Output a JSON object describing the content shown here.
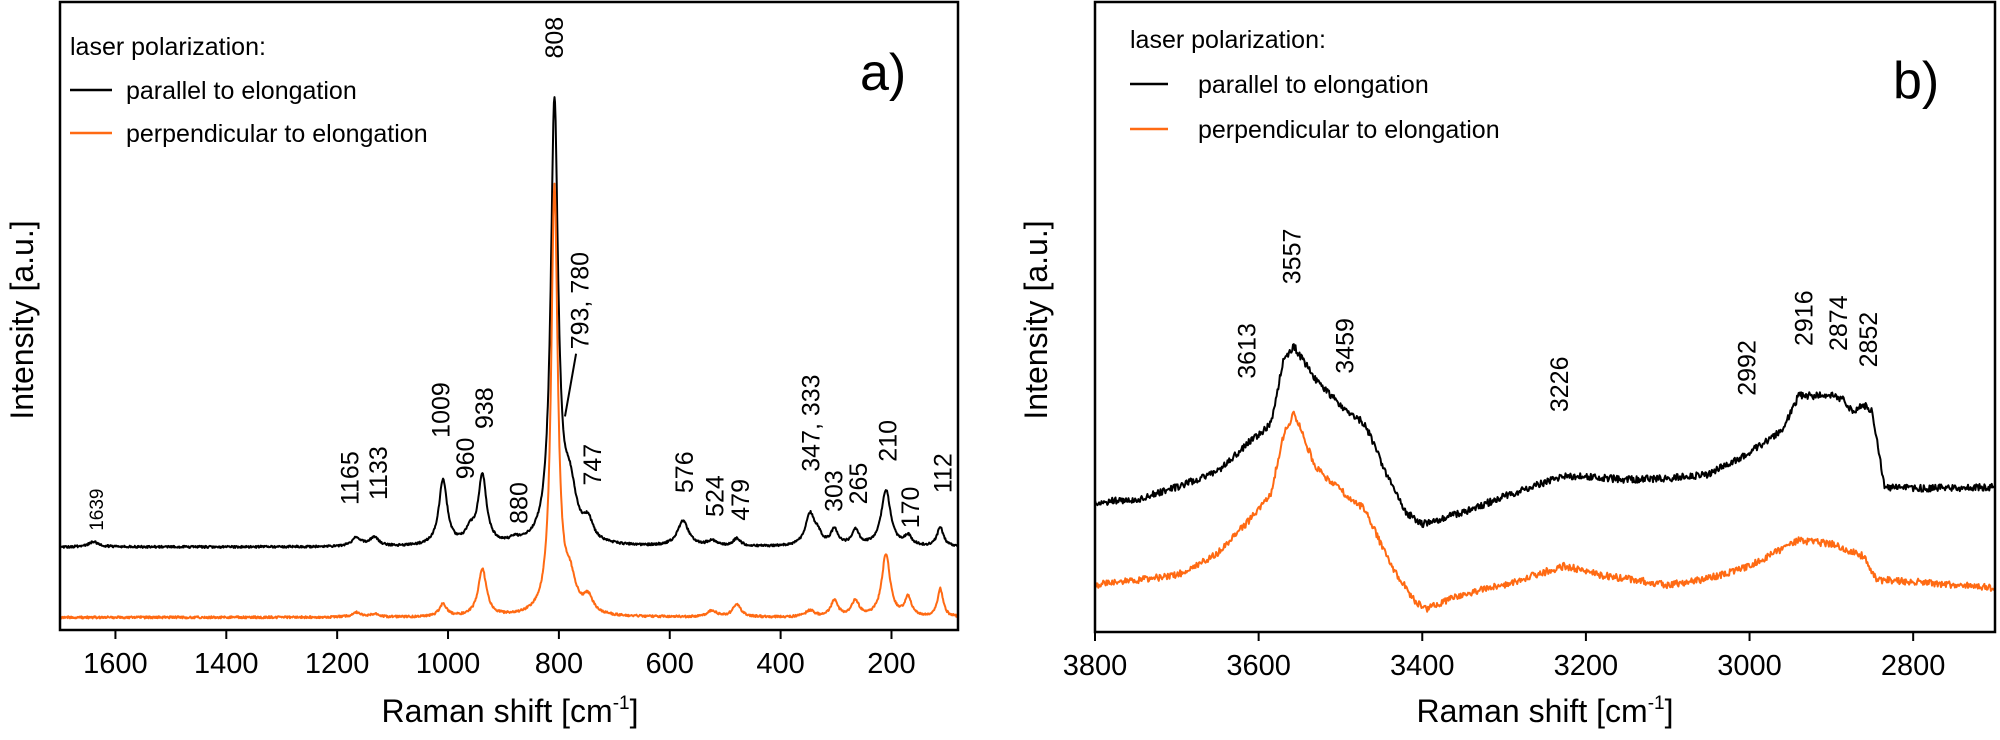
{
  "chart_data": [
    {
      "type": "line",
      "panel_label": "a)",
      "xlabel": "Raman shift [cm",
      "xlabel_sup": "-1",
      "xlabel_end": "]",
      "ylabel": "Intensity [a.u.]",
      "xlim": [
        1700,
        80
      ],
      "ylim": [
        0,
        100
      ],
      "x_ticks": [
        1600,
        1400,
        1200,
        1000,
        800,
        600,
        400,
        200
      ],
      "y_ticks": [],
      "grid": false,
      "legend": {
        "title": "laser polarization:",
        "placement": "top-left",
        "entries": [
          "parallel to elongation",
          "perpendicular to elongation"
        ]
      },
      "series": [
        {
          "name": "parallel to elongation",
          "color": "#000000",
          "baseline": 13.2,
          "peaks": [
            {
              "x": 1639,
              "h": 0.8,
              "w": 12
            },
            {
              "x": 1165,
              "h": 1.4,
              "w": 10
            },
            {
              "x": 1133,
              "h": 1.4,
              "w": 10
            },
            {
              "x": 1009,
              "h": 10.5,
              "w": 9
            },
            {
              "x": 960,
              "h": 2,
              "w": 10
            },
            {
              "x": 938,
              "h": 11,
              "w": 9
            },
            {
              "x": 880,
              "h": 0.6,
              "w": 10
            },
            {
              "x": 808,
              "h": 70,
              "w": 8
            },
            {
              "x": 780,
              "h": 8,
              "w": 14
            },
            {
              "x": 747,
              "h": 3,
              "w": 10
            },
            {
              "x": 576,
              "h": 4,
              "w": 12
            },
            {
              "x": 524,
              "h": 0.8,
              "w": 10
            },
            {
              "x": 479,
              "h": 1.2,
              "w": 8
            },
            {
              "x": 347,
              "h": 5,
              "w": 10
            },
            {
              "x": 333,
              "h": 1.5,
              "w": 8
            },
            {
              "x": 303,
              "h": 2.5,
              "w": 8
            },
            {
              "x": 265,
              "h": 2.5,
              "w": 8
            },
            {
              "x": 210,
              "h": 9,
              "w": 10
            },
            {
              "x": 170,
              "h": 1.5,
              "w": 8
            },
            {
              "x": 112,
              "h": 3,
              "w": 7
            }
          ]
        },
        {
          "name": "perpendicular to elongation",
          "color": "#ff6a13",
          "baseline": 2,
          "peaks": [
            {
              "x": 1165,
              "h": 0.7,
              "w": 10
            },
            {
              "x": 1133,
              "h": 0.5,
              "w": 10
            },
            {
              "x": 1009,
              "h": 2,
              "w": 8
            },
            {
              "x": 938,
              "h": 7.5,
              "w": 9
            },
            {
              "x": 808,
              "h": 68,
              "w": 7
            },
            {
              "x": 780,
              "h": 5,
              "w": 13
            },
            {
              "x": 747,
              "h": 2.5,
              "w": 10
            },
            {
              "x": 524,
              "h": 1,
              "w": 10
            },
            {
              "x": 479,
              "h": 2,
              "w": 9
            },
            {
              "x": 347,
              "h": 1,
              "w": 10
            },
            {
              "x": 303,
              "h": 2.5,
              "w": 8
            },
            {
              "x": 265,
              "h": 2.5,
              "w": 8
            },
            {
              "x": 210,
              "h": 10,
              "w": 9
            },
            {
              "x": 170,
              "h": 3,
              "w": 7
            },
            {
              "x": 112,
              "h": 4.5,
              "w": 6
            }
          ]
        }
      ],
      "annotations": [
        {
          "text": "1639",
          "x": 1639,
          "y": 15.8,
          "small": true
        },
        {
          "text": "1165",
          "x": 1178,
          "y": 19.9
        },
        {
          "text": "1133",
          "x": 1126,
          "y": 20.7
        },
        {
          "text": "1009",
          "x": 1014,
          "y": 30.6
        },
        {
          "text": "960",
          "x": 969,
          "y": 24
        },
        {
          "text": "938",
          "x": 935,
          "y": 32
        },
        {
          "text": "880",
          "x": 873,
          "y": 16.9
        },
        {
          "text": "808",
          "x": 809,
          "y": 91
        },
        {
          "text": "793, 780",
          "x": 763,
          "y": 44.7,
          "leader": [
            [
              769,
              44
            ],
            [
              789,
              34
            ]
          ]
        },
        {
          "text": "747",
          "x": 740,
          "y": 23
        },
        {
          "text": "576",
          "x": 574,
          "y": 21.8
        },
        {
          "text": "524",
          "x": 519,
          "y": 18
        },
        {
          "text": "479",
          "x": 473,
          "y": 17.4
        },
        {
          "text": "347, 333",
          "x": 346,
          "y": 25.2
        },
        {
          "text": "303",
          "x": 305,
          "y": 18.8
        },
        {
          "text": "265",
          "x": 260,
          "y": 20
        },
        {
          "text": "210",
          "x": 207,
          "y": 26.8
        },
        {
          "text": "170",
          "x": 167,
          "y": 16.2
        },
        {
          "text": "112",
          "x": 108,
          "y": 21.8
        }
      ]
    },
    {
      "type": "line",
      "panel_label": "b)",
      "xlabel": "Raman shift [cm",
      "xlabel_sup": "-1",
      "xlabel_end": "]",
      "ylabel": "Intensity [a.u.]",
      "xlim": [
        3800,
        2700
      ],
      "ylim": [
        0,
        100
      ],
      "x_ticks": [
        3800,
        3600,
        3400,
        3200,
        3000,
        2800
      ],
      "y_ticks": [],
      "grid": false,
      "legend": {
        "title": "laser polarization:",
        "placement": "top-left",
        "entries": [
          "parallel to elongation",
          "perpendicular to elongation"
        ]
      },
      "series": [
        {
          "name": "parallel to elongation",
          "color": "#000000",
          "points": [
            [
              3800,
              20.6
            ],
            [
              3750,
              21
            ],
            [
              3700,
              23
            ],
            [
              3650,
              25.5
            ],
            [
              3613,
              30
            ],
            [
              3585,
              33
            ],
            [
              3570,
              43
            ],
            [
              3557,
              45.4
            ],
            [
              3530,
              40
            ],
            [
              3500,
              36
            ],
            [
              3470,
              33
            ],
            [
              3440,
              24
            ],
            [
              3420,
              19
            ],
            [
              3400,
              17.1
            ],
            [
              3350,
              19
            ],
            [
              3300,
              21.5
            ],
            [
              3226,
              24.8
            ],
            [
              3150,
              24.2
            ],
            [
              3100,
              24.4
            ],
            [
              3050,
              25
            ],
            [
              3000,
              28.5
            ],
            [
              2960,
              32
            ],
            [
              2940,
              37.5
            ],
            [
              2900,
              37.5
            ],
            [
              2885,
              37
            ],
            [
              2875,
              35
            ],
            [
              2860,
              36
            ],
            [
              2850,
              35
            ],
            [
              2835,
              23
            ],
            [
              2800,
              22.8
            ],
            [
              2700,
              23
            ]
          ]
        },
        {
          "name": "perpendicular to elongation",
          "color": "#ff6a13",
          "points": [
            [
              3800,
              7.5
            ],
            [
              3700,
              9
            ],
            [
              3650,
              12.5
            ],
            [
              3613,
              17.5
            ],
            [
              3585,
              22
            ],
            [
              3570,
              31
            ],
            [
              3557,
              34.9
            ],
            [
              3530,
              26
            ],
            [
              3500,
              22.5
            ],
            [
              3470,
              19.5
            ],
            [
              3440,
              11
            ],
            [
              3410,
              5
            ],
            [
              3395,
              3.7
            ],
            [
              3350,
              6
            ],
            [
              3300,
              7.5
            ],
            [
              3226,
              10.5
            ],
            [
              3180,
              9
            ],
            [
              3100,
              7.5
            ],
            [
              3050,
              8.5
            ],
            [
              3000,
              10.5
            ],
            [
              2940,
              14.5
            ],
            [
              2900,
              14
            ],
            [
              2860,
              12
            ],
            [
              2845,
              8.3
            ],
            [
              2800,
              8
            ],
            [
              2700,
              7
            ]
          ]
        }
      ],
      "annotations": [
        {
          "text": "3613",
          "x": 3615,
          "y": 40.2
        },
        {
          "text": "3557",
          "x": 3560,
          "y": 55.2
        },
        {
          "text": "3459",
          "x": 3495,
          "y": 41
        },
        {
          "text": "3226",
          "x": 3233,
          "y": 34.9
        },
        {
          "text": "2992",
          "x": 3004,
          "y": 37.5
        },
        {
          "text": "2916",
          "x": 2934,
          "y": 45.4
        },
        {
          "text": "2874",
          "x": 2892,
          "y": 44.6
        },
        {
          "text": "2852",
          "x": 2855,
          "y": 42
        }
      ]
    }
  ]
}
